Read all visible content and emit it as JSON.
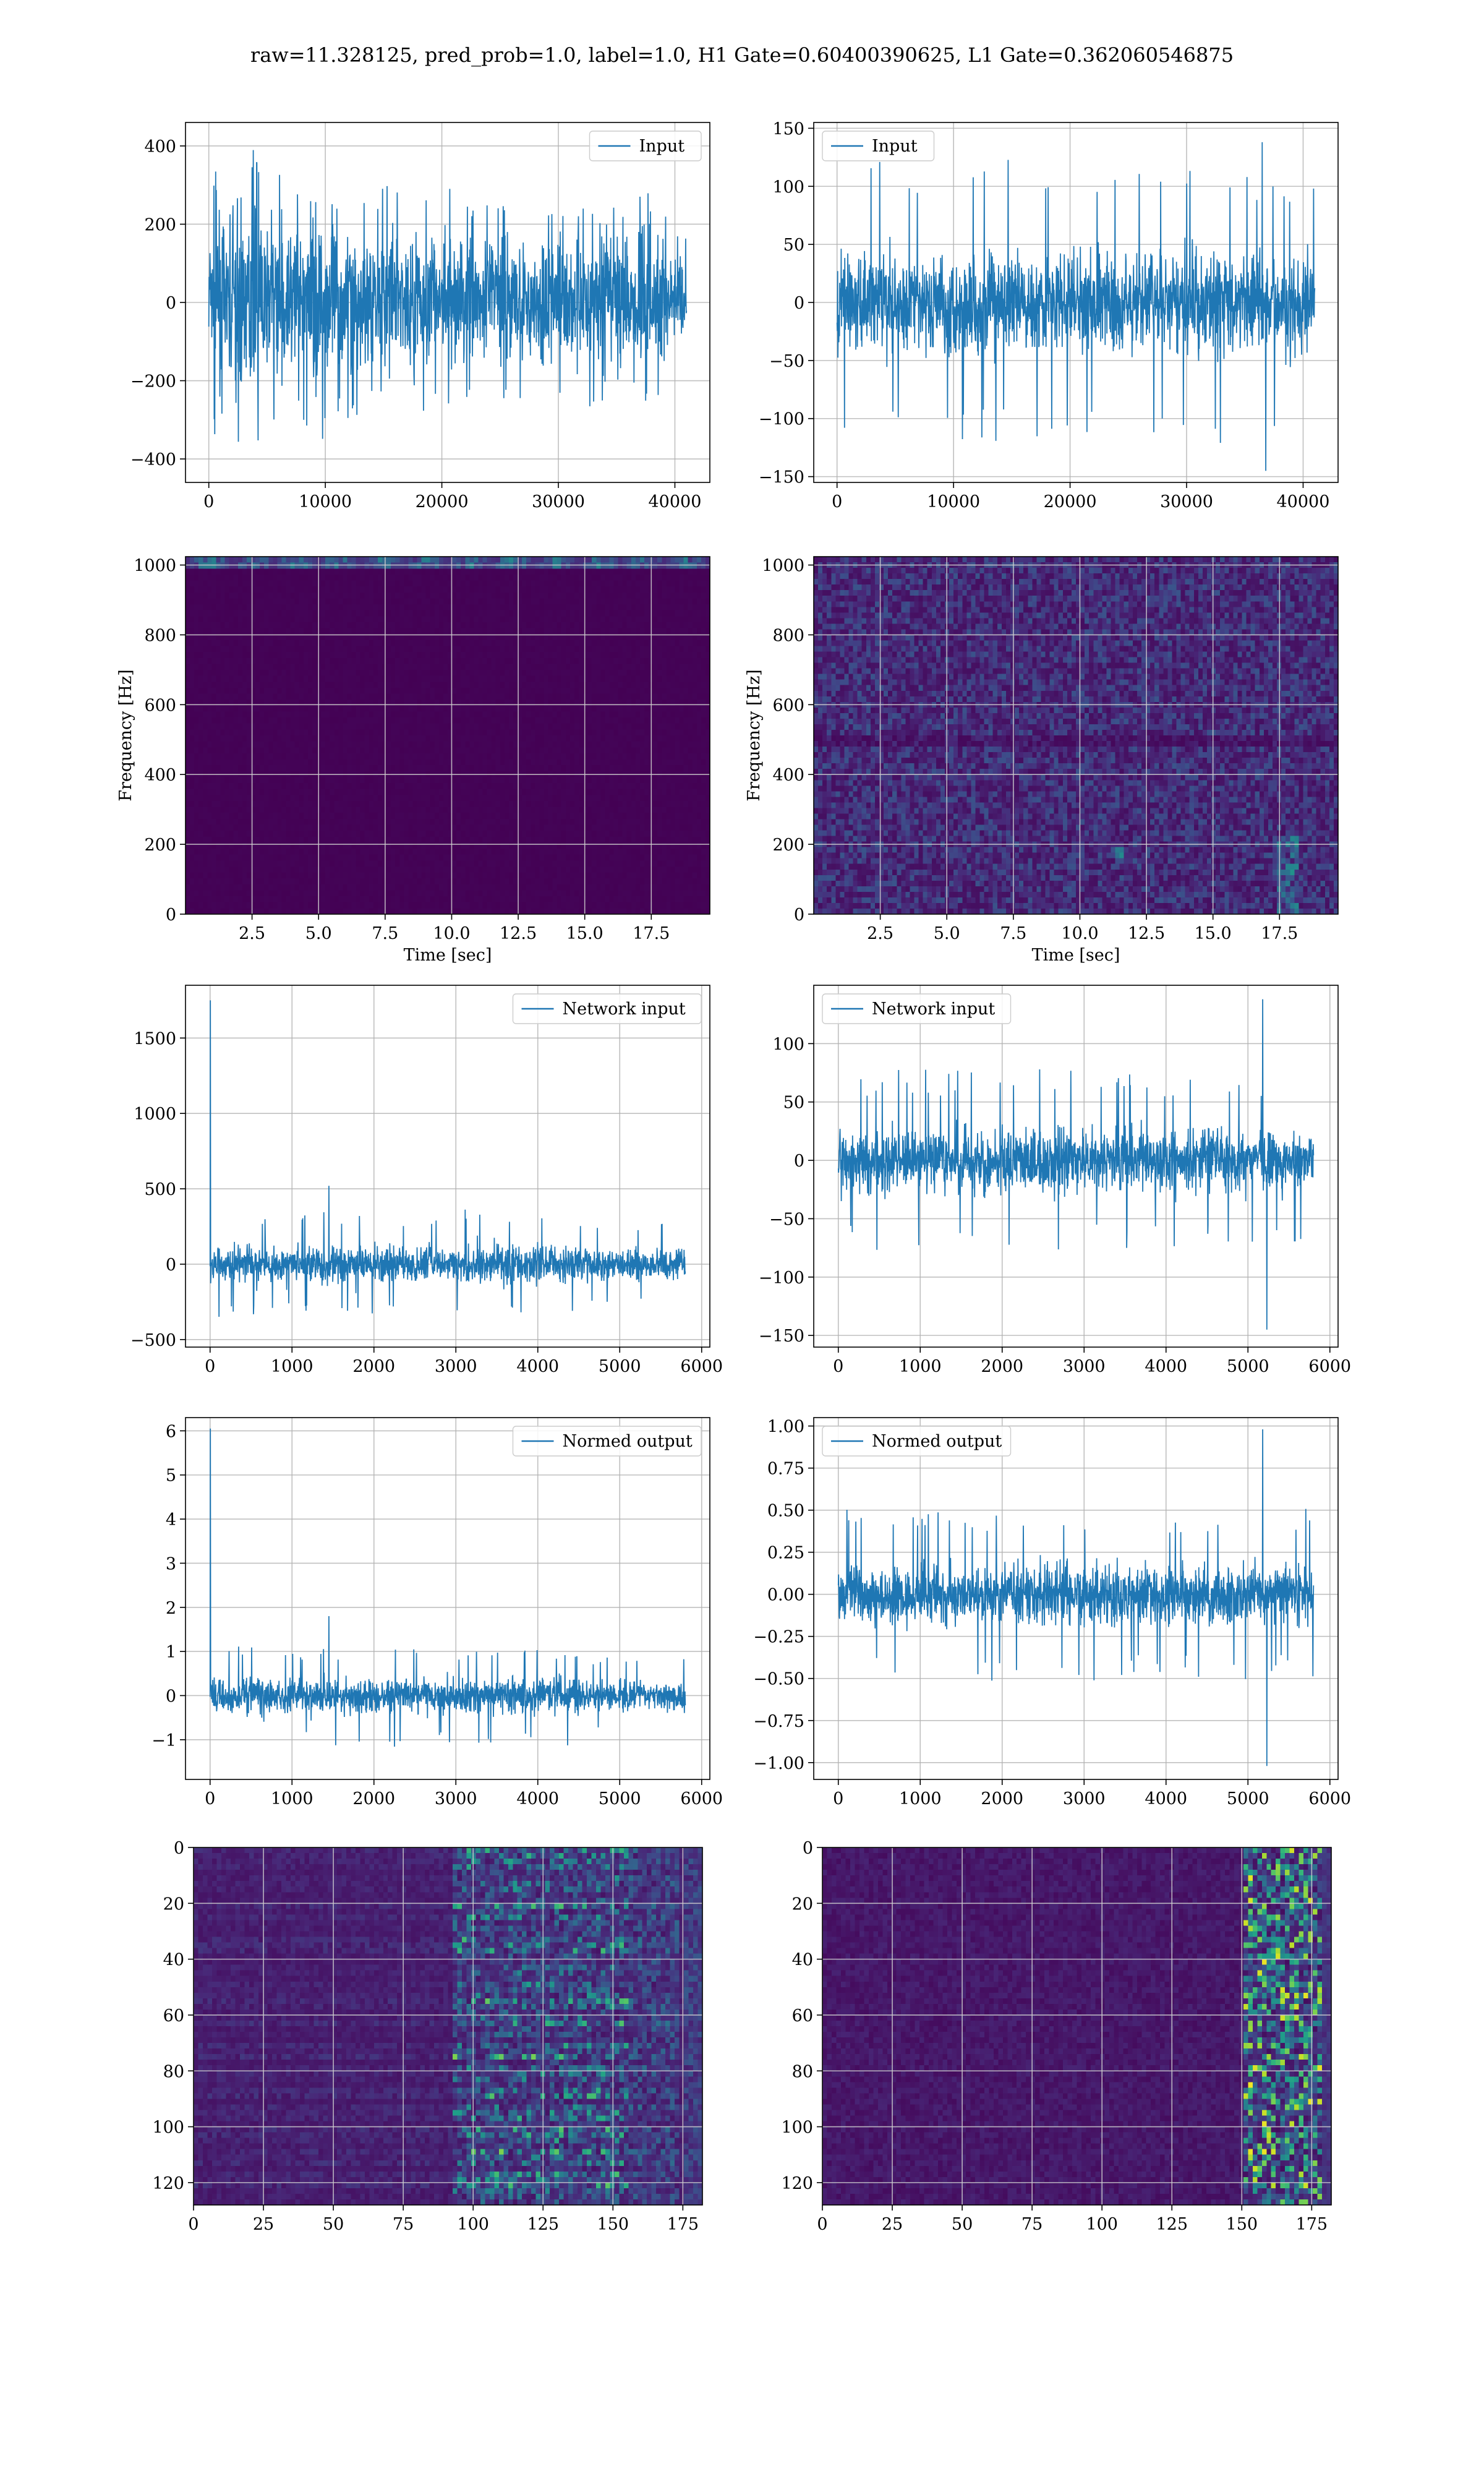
{
  "figure": {
    "suptitle": "raw=11.328125, pred_prob=1.0, label=1.0, H1 Gate=0.60400390625, L1 Gate=0.362060546875",
    "colors": {
      "line": "#1f77b4",
      "grid": "#b0b0b0",
      "viridis": [
        "#440154",
        "#482878",
        "#3e4a89",
        "#31688e",
        "#26828e",
        "#1f9e89",
        "#35b779",
        "#6ece58",
        "#b5de2b",
        "#fde725"
      ]
    }
  },
  "chart_data": [
    {
      "id": "input-h1",
      "type": "line",
      "legend": "Input",
      "legend_loc": "upper right",
      "xlim": [
        -2000,
        43000
      ],
      "ylim": [
        -460,
        460
      ],
      "xticks": [
        0,
        10000,
        20000,
        30000,
        40000
      ],
      "yticks": [
        -400,
        -200,
        0,
        200,
        400
      ],
      "signal": {
        "x_start": 0,
        "x_end": 41000,
        "envelope": [
          [
            0,
            420
          ],
          [
            900,
            300
          ],
          [
            2000,
            410
          ],
          [
            4200,
            390
          ],
          [
            6500,
            320
          ],
          [
            9000,
            360
          ],
          [
            12000,
            320
          ],
          [
            15000,
            310
          ],
          [
            18000,
            300
          ],
          [
            21000,
            290
          ],
          [
            24000,
            280
          ],
          [
            27000,
            270
          ],
          [
            30000,
            280
          ],
          [
            33000,
            300
          ],
          [
            36000,
            300
          ],
          [
            38000,
            310
          ],
          [
            39500,
            250
          ],
          [
            41000,
            180
          ]
        ],
        "min_envelope": [
          [
            0,
            -360
          ],
          [
            2500,
            -410
          ],
          [
            4000,
            -390
          ],
          [
            8000,
            -330
          ],
          [
            14000,
            -300
          ],
          [
            20000,
            -300
          ],
          [
            26000,
            -280
          ],
          [
            32000,
            -280
          ],
          [
            38000,
            -250
          ],
          [
            41000,
            -180
          ]
        ]
      }
    },
    {
      "id": "input-l1",
      "type": "line",
      "legend": "Input",
      "legend_loc": "upper left",
      "xlim": [
        -2000,
        43000
      ],
      "ylim": [
        -155,
        155
      ],
      "xticks": [
        0,
        10000,
        20000,
        30000,
        40000
      ],
      "yticks": [
        -150,
        -100,
        -50,
        0,
        50,
        100,
        150
      ],
      "signal": {
        "x_start": 0,
        "x_end": 41000,
        "max": 138,
        "max_at": 36500,
        "min": -145,
        "min_at": 36800,
        "typical_peak": 95
      }
    },
    {
      "id": "spectrogram-h1",
      "type": "heatmap",
      "xlabel": "Time [sec]",
      "ylabel": "Frequency [Hz]",
      "xlim": [
        0,
        19.7
      ],
      "ylim": [
        0,
        1024
      ],
      "xticks": [
        2.5,
        5.0,
        7.5,
        10.0,
        12.5,
        15.0,
        17.5
      ],
      "yticks": [
        0,
        200,
        400,
        600,
        800,
        1000
      ],
      "description": "nearly uniform dark; bright narrow band at top near 1000 Hz"
    },
    {
      "id": "spectrogram-l1",
      "type": "heatmap",
      "xlabel": "Time [sec]",
      "ylabel": "Frequency [Hz]",
      "xlim": [
        0,
        19.7
      ],
      "ylim": [
        0,
        1024
      ],
      "xticks": [
        2.5,
        5.0,
        7.5,
        10.0,
        12.5,
        15.0,
        17.5
      ],
      "yticks": [
        0,
        200,
        400,
        600,
        800,
        1000
      ],
      "description": "speckled noise; brighter spots near t=18s low frequency"
    },
    {
      "id": "network-input-h1",
      "type": "line",
      "legend": "Network input",
      "legend_loc": "upper right",
      "xlim": [
        -300,
        6100
      ],
      "ylim": [
        -550,
        1850
      ],
      "xticks": [
        0,
        1000,
        2000,
        3000,
        4000,
        5000,
        6000
      ],
      "yticks": [
        -500,
        0,
        500,
        1000,
        1500
      ],
      "signal": {
        "x_start": 0,
        "x_end": 5800,
        "spike_at": 0,
        "spike_value": 1750,
        "typical_peak": 280,
        "max": 520,
        "max_at": 1450,
        "drop_at": 4650,
        "after_drop_peak": 220
      }
    },
    {
      "id": "network-input-l1",
      "type": "line",
      "legend": "Network input",
      "legend_loc": "upper left",
      "xlim": [
        -300,
        6100
      ],
      "ylim": [
        -160,
        150
      ],
      "xticks": [
        0,
        1000,
        2000,
        3000,
        4000,
        5000,
        6000
      ],
      "yticks": [
        -150,
        -100,
        -50,
        0,
        50,
        100
      ],
      "signal": {
        "x_start": 0,
        "x_end": 5800,
        "typical_peak": 60,
        "max": 138,
        "max_at": 5180,
        "min": -145,
        "min_at": 5230
      }
    },
    {
      "id": "normed-output-h1",
      "type": "line",
      "legend": "Normed output",
      "legend_loc": "upper right",
      "xlim": [
        -300,
        6100
      ],
      "ylim": [
        -1.9,
        6.3
      ],
      "xticks": [
        0,
        1000,
        2000,
        3000,
        4000,
        5000,
        6000
      ],
      "yticks": [
        -1,
        0,
        1,
        2,
        3,
        4,
        5,
        6
      ],
      "signal": {
        "x_start": 0,
        "x_end": 5800,
        "spike_at": 0,
        "spike_value": 6.05,
        "typical_peak": 0.9,
        "max": 1.8,
        "max_at": 1450,
        "drop_at": 4650,
        "after_drop_peak": 0.75
      }
    },
    {
      "id": "normed-output-l1",
      "type": "line",
      "legend": "Normed output",
      "legend_loc": "upper left",
      "xlim": [
        -300,
        6100
      ],
      "ylim": [
        -1.1,
        1.05
      ],
      "xticks": [
        0,
        1000,
        2000,
        3000,
        4000,
        5000,
        6000
      ],
      "yticks": [
        -1.0,
        -0.75,
        -0.5,
        -0.25,
        0.0,
        0.25,
        0.5,
        0.75,
        1.0
      ],
      "signal": {
        "x_start": 0,
        "x_end": 5800,
        "typical_peak": 0.4,
        "max": 0.98,
        "max_at": 5180,
        "min": -1.02,
        "min_at": 5230
      }
    },
    {
      "id": "features-h1",
      "type": "heatmap",
      "xlim": [
        0,
        182
      ],
      "ylim": [
        128,
        0
      ],
      "xticks": [
        0,
        25,
        50,
        75,
        100,
        125,
        150,
        175
      ],
      "yticks": [
        0,
        20,
        40,
        60,
        80,
        100,
        120
      ],
      "description": "128 channels over ~182 steps; strongest activations around steps 100-150"
    },
    {
      "id": "features-l1",
      "type": "heatmap",
      "xlim": [
        0,
        182
      ],
      "ylim": [
        128,
        0
      ],
      "xticks": [
        0,
        25,
        50,
        75,
        100,
        125,
        150,
        175
      ],
      "yticks": [
        0,
        20,
        40,
        60,
        80,
        100,
        120
      ],
      "description": "mostly dark; activations concentrated around steps 150-175"
    }
  ]
}
